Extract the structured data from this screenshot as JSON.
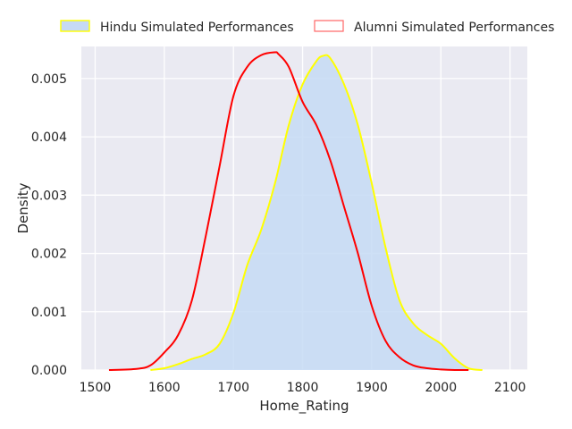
{
  "chart_data": {
    "type": "area",
    "title": "",
    "xlabel": "Home_Rating",
    "ylabel": "Density",
    "xlim": [
      1480,
      2125
    ],
    "ylim": [
      0,
      0.00555
    ],
    "x_ticks": [
      1500,
      1600,
      1700,
      1800,
      1900,
      2000,
      2100
    ],
    "x_tick_labels": [
      "1500",
      "1600",
      "1700",
      "1800",
      "1900",
      "2000",
      "2100"
    ],
    "y_ticks": [
      0,
      0.001,
      0.002,
      0.003,
      0.004,
      0.005
    ],
    "y_tick_labels": [
      "0.000",
      "0.001",
      "0.002",
      "0.003",
      "0.004",
      "0.005"
    ],
    "grid": true,
    "legend_position": "top",
    "colors": {
      "plot_background": "#eaeaf2",
      "grid": "#ffffff",
      "hindu_fill": "#c6daf4",
      "hindu_line": "#ffff00",
      "alumni_line": "#ff0000"
    },
    "series": [
      {
        "name": "Hindu Simulated Performances",
        "style": "filled",
        "x": [
          1580,
          1600,
          1620,
          1640,
          1660,
          1680,
          1700,
          1720,
          1740,
          1760,
          1780,
          1800,
          1820,
          1830,
          1840,
          1860,
          1880,
          1900,
          1920,
          1940,
          1960,
          1980,
          2000,
          2020,
          2040,
          2060
        ],
        "y": [
          0.0,
          3e-05,
          0.0001,
          0.00019,
          0.00027,
          0.00045,
          0.00098,
          0.0018,
          0.0024,
          0.0032,
          0.0042,
          0.0049,
          0.0053,
          0.00539,
          0.00535,
          0.0049,
          0.0042,
          0.0032,
          0.0021,
          0.0012,
          0.0008,
          0.0006,
          0.00045,
          0.0002,
          3e-05,
          0.0
        ]
      },
      {
        "name": "Alumni Simulated Performances",
        "style": "line",
        "x": [
          1520,
          1560,
          1580,
          1600,
          1620,
          1640,
          1660,
          1680,
          1700,
          1720,
          1740,
          1760,
          1765,
          1780,
          1800,
          1820,
          1840,
          1860,
          1880,
          1900,
          1920,
          1940,
          1960,
          1980,
          2000,
          2020,
          2040
        ],
        "y": [
          0.0,
          2e-05,
          8e-05,
          0.0003,
          0.0006,
          0.0012,
          0.0023,
          0.0035,
          0.0047,
          0.0052,
          0.0054,
          0.00545,
          0.00542,
          0.0052,
          0.0046,
          0.0042,
          0.0036,
          0.0028,
          0.002,
          0.0011,
          0.0005,
          0.00022,
          8e-05,
          3e-05,
          1e-05,
          0.0,
          0.0
        ]
      }
    ]
  }
}
